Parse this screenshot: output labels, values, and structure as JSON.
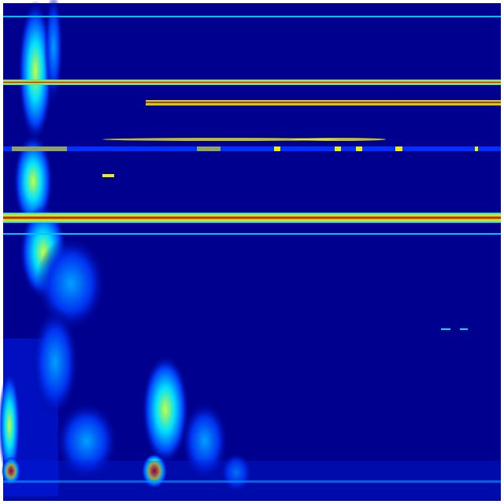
{
  "colormap": {
    "background": "#00008f",
    "dark_blue": "#0000c8",
    "blue": "#0040ff",
    "cyan": "#00e0ff",
    "yellow": "#f0f000",
    "orange": "#ff8000",
    "red": "#b00000"
  }
}
